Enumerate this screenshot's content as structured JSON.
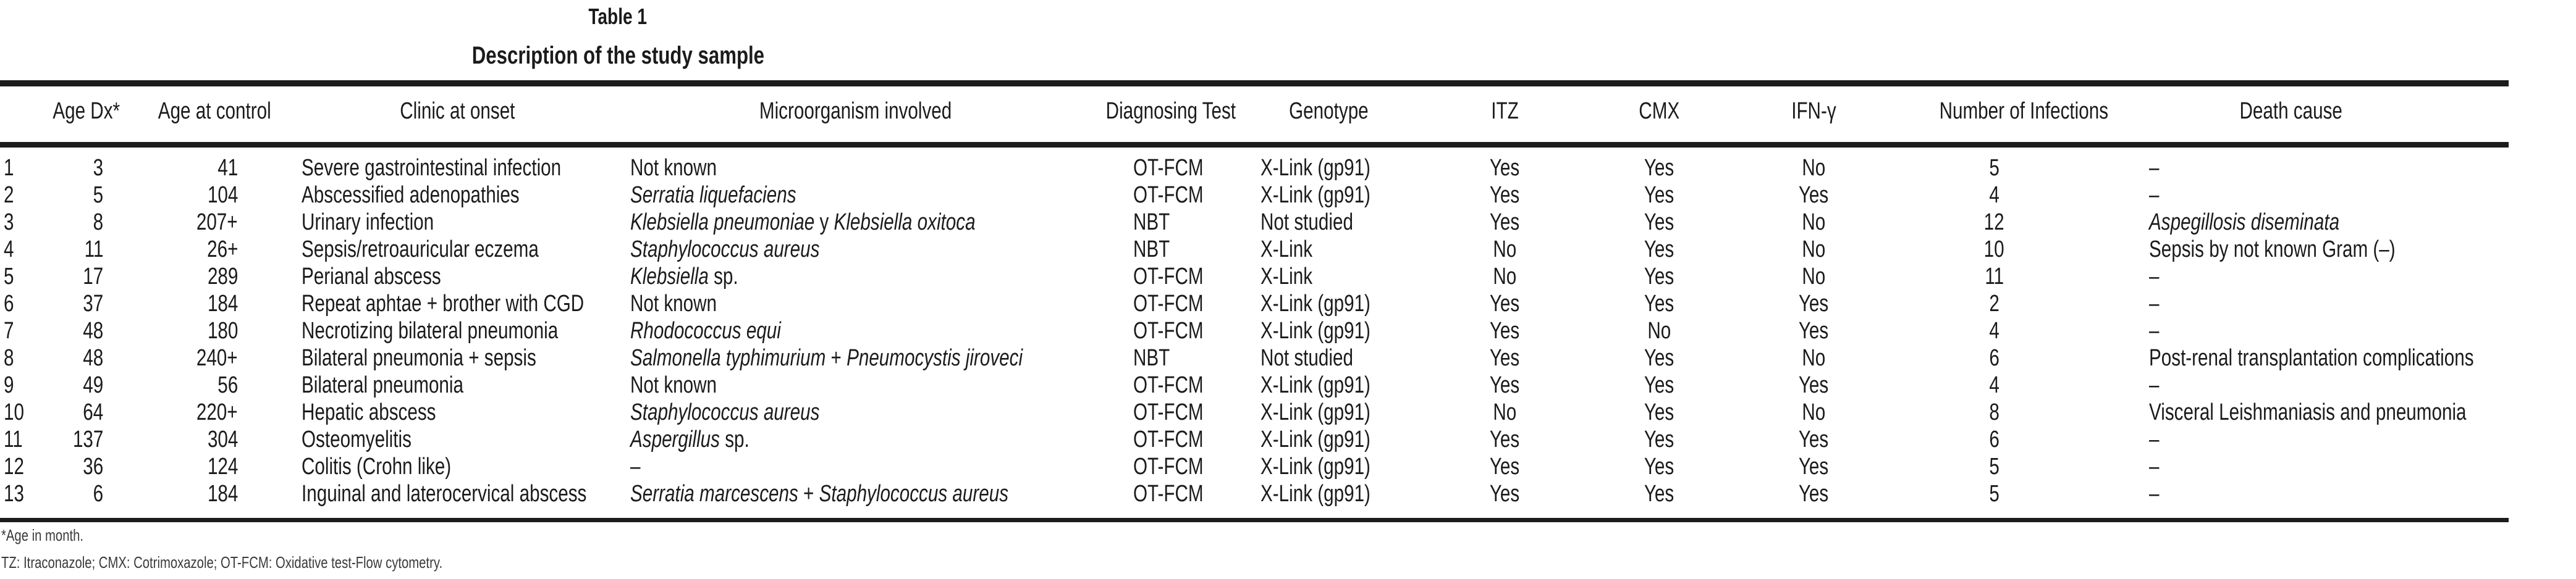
{
  "colors": {
    "background": "#ffffff",
    "text": "#1b1b1b",
    "rule": "#1c1c1c"
  },
  "title": {
    "label": "Table 1",
    "subtitle": "Description of the study sample"
  },
  "table": {
    "columns": [
      "",
      "Age Dx*",
      "Age at control",
      "Clinic at onset",
      "Microorganism involved",
      "Diagnosing Test",
      "Genotype",
      "ITZ",
      "CMX",
      "IFN-γ",
      "Number of Infections",
      "Death cause"
    ],
    "rows": [
      {
        "num": "1",
        "age_dx": "3",
        "age_control": "41",
        "clinic": "Severe gastrointestinal infection",
        "micro": [
          {
            "t": "Not known",
            "i": false
          }
        ],
        "test": "OT-FCM",
        "genotype": "X-Link (gp91)",
        "itz": "Yes",
        "cmx": "Yes",
        "ifng": "No",
        "infections": "5",
        "death": [
          {
            "t": "–",
            "i": false
          }
        ]
      },
      {
        "num": "2",
        "age_dx": "5",
        "age_control": "104",
        "clinic": "Abscessified adenopathies",
        "micro": [
          {
            "t": "Serratia liquefaciens",
            "i": true
          }
        ],
        "test": "OT-FCM",
        "genotype": "X-Link (gp91)",
        "itz": "Yes",
        "cmx": "Yes",
        "ifng": "Yes",
        "infections": "4",
        "death": [
          {
            "t": "–",
            "i": false
          }
        ]
      },
      {
        "num": "3",
        "age_dx": "8",
        "age_control": "207+",
        "clinic": "Urinary infection",
        "micro": [
          {
            "t": "Klebsiella pneumoniae",
            "i": true
          },
          {
            "t": " y ",
            "i": false
          },
          {
            "t": "Klebsiella oxitoca",
            "i": true
          }
        ],
        "test": "NBT",
        "genotype": "Not studied",
        "itz": "Yes",
        "cmx": "Yes",
        "ifng": "No",
        "infections": "12",
        "death": [
          {
            "t": "Aspegillosis diseminata",
            "i": true
          }
        ]
      },
      {
        "num": "4",
        "age_dx": "11",
        "age_control": "26+",
        "clinic": "Sepsis/retroauricular eczema",
        "micro": [
          {
            "t": "Staphylococcus aureus",
            "i": true
          }
        ],
        "test": "NBT",
        "genotype": "X-Link",
        "itz": "No",
        "cmx": "Yes",
        "ifng": "No",
        "infections": "10",
        "death": [
          {
            "t": "Sepsis by not known Gram (–)",
            "i": false
          }
        ]
      },
      {
        "num": "5",
        "age_dx": "17",
        "age_control": "289",
        "clinic": "Perianal abscess",
        "micro": [
          {
            "t": "Klebsiella",
            "i": true
          },
          {
            "t": " sp.",
            "i": false
          }
        ],
        "test": "OT-FCM",
        "genotype": "X-Link",
        "itz": "No",
        "cmx": "Yes",
        "ifng": "No",
        "infections": "11",
        "death": [
          {
            "t": "–",
            "i": false
          }
        ]
      },
      {
        "num": "6",
        "age_dx": "37",
        "age_control": "184",
        "clinic": "Repeat aphtae + brother with CGD",
        "micro": [
          {
            "t": "Not known",
            "i": false
          }
        ],
        "test": "OT-FCM",
        "genotype": "X-Link (gp91)",
        "itz": "Yes",
        "cmx": "Yes",
        "ifng": "Yes",
        "infections": "2",
        "death": [
          {
            "t": "–",
            "i": false
          }
        ]
      },
      {
        "num": "7",
        "age_dx": "48",
        "age_control": "180",
        "clinic": "Necrotizing bilateral pneumonia",
        "micro": [
          {
            "t": "Rhodococcus equi",
            "i": true
          }
        ],
        "test": "OT-FCM",
        "genotype": "X-Link (gp91)",
        "itz": "Yes",
        "cmx": "No",
        "ifng": "Yes",
        "infections": "4",
        "death": [
          {
            "t": "–",
            "i": false
          }
        ]
      },
      {
        "num": "8",
        "age_dx": "48",
        "age_control": "240+",
        "clinic": "Bilateral pneumonia + sepsis",
        "micro": [
          {
            "t": "Salmonella typhimurium",
            "i": true
          },
          {
            "t": " + ",
            "i": false
          },
          {
            "t": "Pneumocystis jiroveci",
            "i": true
          }
        ],
        "test": "NBT",
        "genotype": "Not studied",
        "itz": "Yes",
        "cmx": "Yes",
        "ifng": "No",
        "infections": "6",
        "death": [
          {
            "t": "Post-renal transplantation complications",
            "i": false
          }
        ]
      },
      {
        "num": "9",
        "age_dx": "49",
        "age_control": "56",
        "clinic": "Bilateral pneumonia",
        "micro": [
          {
            "t": "Not known",
            "i": false
          }
        ],
        "test": "OT-FCM",
        "genotype": "X-Link (gp91)",
        "itz": "Yes",
        "cmx": "Yes",
        "ifng": "Yes",
        "infections": "4",
        "death": [
          {
            "t": "–",
            "i": false
          }
        ]
      },
      {
        "num": "10",
        "age_dx": "64",
        "age_control": "220+",
        "clinic": "Hepatic abscess",
        "micro": [
          {
            "t": "Staphylococcus aureus",
            "i": true
          }
        ],
        "test": "OT-FCM",
        "genotype": "X-Link (gp91)",
        "itz": "No",
        "cmx": "Yes",
        "ifng": "No",
        "infections": "8",
        "death": [
          {
            "t": "Visceral Leishmaniasis and pneumonia",
            "i": false
          }
        ]
      },
      {
        "num": "11",
        "age_dx": "137",
        "age_control": "304",
        "clinic": "Osteomyelitis",
        "micro": [
          {
            "t": "Aspergillus",
            "i": true
          },
          {
            "t": " sp.",
            "i": false
          }
        ],
        "test": "OT-FCM",
        "genotype": "X-Link (gp91)",
        "itz": "Yes",
        "cmx": "Yes",
        "ifng": "Yes",
        "infections": "6",
        "death": [
          {
            "t": "–",
            "i": false
          }
        ]
      },
      {
        "num": "12",
        "age_dx": "36",
        "age_control": "124",
        "clinic": "Colitis (Crohn like)",
        "micro": [
          {
            "t": "–",
            "i": false
          }
        ],
        "test": "OT-FCM",
        "genotype": "X-Link (gp91)",
        "itz": "Yes",
        "cmx": "Yes",
        "ifng": "Yes",
        "infections": "5",
        "death": [
          {
            "t": "–",
            "i": false
          }
        ]
      },
      {
        "num": "13",
        "age_dx": "6",
        "age_control": "184",
        "clinic": "Inguinal and laterocervical abscess",
        "micro": [
          {
            "t": "Serratia marcescens",
            "i": true
          },
          {
            "t": " + ",
            "i": false
          },
          {
            "t": "Staphylococcus aureus",
            "i": true
          }
        ],
        "test": "OT-FCM",
        "genotype": "X-Link (gp91)",
        "itz": "Yes",
        "cmx": "Yes",
        "ifng": "Yes",
        "infections": "5",
        "death": [
          {
            "t": "–",
            "i": false
          }
        ]
      }
    ]
  },
  "footnotes": [
    "*Age in month.",
    "TZ: Itraconazole; CMX: Cotrimoxazole; OT-FCM: Oxidative test-Flow cytometry."
  ]
}
